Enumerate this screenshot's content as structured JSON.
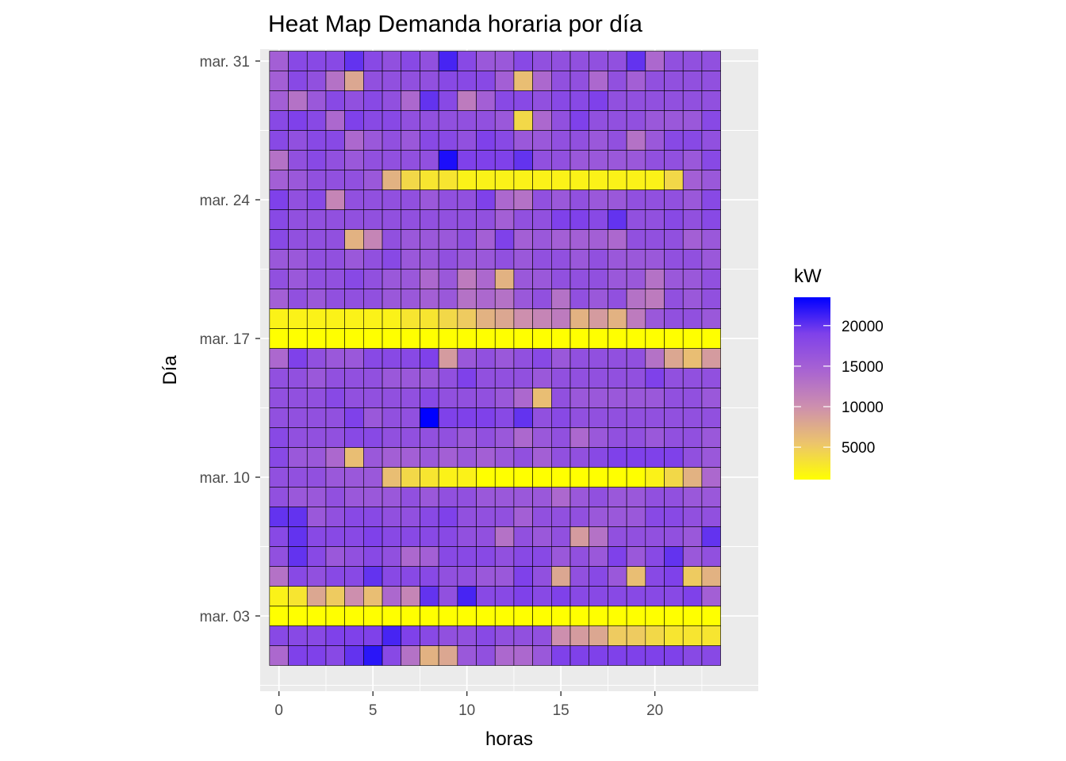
{
  "chart_data": {
    "type": "heatmap",
    "title": "Heat Map Demanda horaria por día",
    "xlabel": "horas",
    "ylabel": "Día",
    "x_ticks": [
      0,
      5,
      10,
      15,
      20
    ],
    "x_range": [
      -1,
      25.5
    ],
    "y_range": [
      -0.8,
      31.6
    ],
    "hours": [
      0,
      1,
      2,
      3,
      4,
      5,
      6,
      7,
      8,
      9,
      10,
      11,
      12,
      13,
      14,
      15,
      16,
      17,
      18,
      19,
      20,
      21,
      22,
      23
    ],
    "days": [
      1,
      2,
      3,
      4,
      5,
      6,
      7,
      8,
      9,
      10,
      11,
      12,
      13,
      14,
      15,
      16,
      17,
      18,
      19,
      20,
      21,
      22,
      23,
      24,
      25,
      26,
      27,
      28,
      29,
      30,
      31
    ],
    "y_tick_days": [
      3,
      10,
      17,
      24,
      31
    ],
    "y_tick_labels": [
      "mar. 03",
      "mar. 10",
      "mar. 17",
      "mar. 24",
      "mar. 31"
    ],
    "legend": {
      "title": "kW",
      "min": 1000,
      "max": 23500,
      "ticks": [
        5000,
        10000,
        15000,
        20000
      ],
      "colors": [
        "#ffff00",
        "#ecc46c",
        "#cd8fae",
        "#a863d2",
        "#7f41ea",
        "#0000ff"
      ]
    },
    "values": [
      [
        14000,
        19000,
        19000,
        18000,
        20000,
        22000,
        18000,
        13000,
        7000,
        8000,
        16000,
        17000,
        14000,
        14000,
        16000,
        19000,
        19000,
        19000,
        19000,
        19000,
        19000,
        19000,
        18000,
        18000
      ],
      [
        18000,
        18000,
        18000,
        19000,
        19000,
        19000,
        21000,
        19000,
        18000,
        17000,
        17000,
        18000,
        17000,
        17000,
        17000,
        10000,
        9000,
        8000,
        5000,
        5000,
        4000,
        3000,
        3000,
        3000
      ],
      [
        1000,
        1000,
        1000,
        1000,
        1000,
        1000,
        1000,
        1000,
        1000,
        1000,
        1000,
        1000,
        1000,
        1000,
        1000,
        1000,
        1000,
        1000,
        1000,
        1000,
        1000,
        1000,
        1000,
        1000
      ],
      [
        2000,
        3000,
        8000,
        5000,
        10000,
        6000,
        14000,
        11000,
        20000,
        17000,
        21000,
        18000,
        18000,
        19000,
        18000,
        19000,
        18000,
        18000,
        18000,
        18000,
        18000,
        18000,
        19000,
        15000
      ],
      [
        13000,
        18000,
        17000,
        18000,
        18000,
        20000,
        18000,
        18000,
        18000,
        17000,
        17000,
        16000,
        16000,
        19000,
        17000,
        8000,
        17000,
        18000,
        16000,
        6000,
        18000,
        19000,
        5000,
        7000
      ],
      [
        17000,
        20000,
        18000,
        16000,
        17000,
        18000,
        17000,
        14000,
        15000,
        18000,
        18000,
        18000,
        17000,
        18000,
        18000,
        16000,
        17000,
        16000,
        19000,
        16000,
        18000,
        20000,
        16000,
        17000
      ],
      [
        18000,
        20000,
        18000,
        18000,
        18000,
        19000,
        18000,
        18000,
        18000,
        18000,
        17000,
        17000,
        13000,
        17000,
        16000,
        17000,
        9000,
        13000,
        17000,
        17000,
        17000,
        17000,
        16000,
        20000
      ],
      [
        20000,
        20000,
        16000,
        17000,
        18000,
        18000,
        17000,
        17000,
        18000,
        19000,
        17000,
        17000,
        17000,
        15000,
        17000,
        17000,
        17000,
        16000,
        16000,
        16000,
        18000,
        18000,
        17000,
        17000
      ],
      [
        17000,
        16000,
        16000,
        17000,
        16000,
        16000,
        16000,
        17000,
        16000,
        17000,
        17000,
        16000,
        16000,
        16000,
        16000,
        14000,
        16000,
        17000,
        16000,
        16000,
        17000,
        17000,
        16000,
        16000
      ],
      [
        17000,
        17000,
        17000,
        16000,
        16000,
        16000,
        6000,
        4000,
        3000,
        2000,
        2000,
        1000,
        1000,
        1000,
        1000,
        1000,
        1000,
        1000,
        1000,
        1000,
        2000,
        4000,
        7000,
        14000
      ],
      [
        18000,
        16000,
        16000,
        14000,
        6000,
        16000,
        15000,
        15000,
        16000,
        15000,
        16000,
        15000,
        16000,
        17000,
        15000,
        17000,
        17000,
        18000,
        19000,
        19000,
        19000,
        19000,
        17000,
        16000
      ],
      [
        18000,
        17000,
        17000,
        17000,
        18000,
        18000,
        17000,
        17000,
        17000,
        17000,
        16000,
        17000,
        16000,
        14000,
        16000,
        17000,
        14000,
        16000,
        17000,
        17000,
        16000,
        17000,
        17000,
        16000
      ],
      [
        17000,
        17000,
        17000,
        17000,
        19000,
        16000,
        17000,
        17000,
        23500,
        19000,
        19000,
        19000,
        18000,
        20000,
        17000,
        18000,
        17000,
        17000,
        17000,
        17000,
        17000,
        17000,
        17000,
        17000
      ],
      [
        17000,
        17000,
        17000,
        18000,
        17000,
        17000,
        17000,
        17000,
        18000,
        17000,
        17000,
        17000,
        16000,
        14000,
        6000,
        17000,
        16000,
        16000,
        16000,
        16000,
        16000,
        17000,
        17000,
        16000
      ],
      [
        17000,
        17000,
        16000,
        17000,
        17000,
        17000,
        16000,
        16000,
        16000,
        17000,
        19000,
        17000,
        17000,
        17000,
        16000,
        17000,
        17000,
        17000,
        17000,
        17000,
        19000,
        17000,
        17000,
        17000
      ],
      [
        14000,
        19000,
        17000,
        16000,
        16000,
        18000,
        18000,
        18000,
        19000,
        9000,
        16000,
        17000,
        16000,
        17000,
        18000,
        16000,
        17000,
        17000,
        17000,
        17000,
        13000,
        8000,
        6000,
        9000
      ],
      [
        1000,
        1000,
        1000,
        1000,
        1000,
        1000,
        1000,
        1000,
        1000,
        1000,
        1000,
        1000,
        1000,
        1000,
        1000,
        1000,
        1000,
        1000,
        1000,
        1000,
        1000,
        1000,
        1000,
        1000
      ],
      [
        2000,
        2000,
        2000,
        2000,
        2000,
        2000,
        2000,
        3000,
        3000,
        4000,
        5000,
        7000,
        8000,
        10000,
        11000,
        12000,
        7000,
        9000,
        7000,
        12000,
        16000,
        17000,
        17000,
        16000
      ],
      [
        15000,
        17000,
        16000,
        17000,
        17000,
        17000,
        16000,
        16000,
        15000,
        16000,
        13000,
        14000,
        13000,
        16000,
        17000,
        13000,
        17000,
        16000,
        17000,
        13000,
        12000,
        17000,
        16000,
        17000
      ],
      [
        17000,
        16000,
        17000,
        17000,
        18000,
        17000,
        16000,
        16000,
        14000,
        16000,
        12000,
        14000,
        7000,
        16000,
        16000,
        17000,
        17000,
        17000,
        16000,
        16000,
        13000,
        16000,
        16000,
        17000
      ],
      [
        16000,
        16000,
        17000,
        17000,
        16000,
        17000,
        18000,
        16000,
        16000,
        17000,
        16000,
        16000,
        17000,
        16000,
        17000,
        17000,
        16000,
        17000,
        16000,
        16000,
        16000,
        17000,
        17000,
        16000
      ],
      [
        18000,
        17000,
        17000,
        17000,
        7000,
        11000,
        17000,
        16000,
        16000,
        16000,
        17000,
        15000,
        19000,
        15000,
        16000,
        15000,
        15000,
        15000,
        14000,
        17000,
        17000,
        17000,
        15000,
        16000
      ],
      [
        18000,
        17000,
        17000,
        17000,
        17000,
        17000,
        17000,
        17000,
        17000,
        17000,
        17000,
        17000,
        15000,
        17000,
        17000,
        19000,
        19000,
        18000,
        20000,
        17000,
        17000,
        18000,
        17000,
        18000
      ],
      [
        19000,
        17000,
        18000,
        11000,
        17000,
        17000,
        17000,
        17000,
        16000,
        17000,
        17000,
        19000,
        14000,
        13000,
        17000,
        16000,
        17000,
        16000,
        16000,
        17000,
        17000,
        17000,
        16000,
        18000
      ],
      [
        15000,
        16000,
        17000,
        17000,
        17000,
        16000,
        7000,
        4000,
        3000,
        3000,
        2000,
        2000,
        2000,
        2000,
        2000,
        2000,
        2000,
        2000,
        2000,
        2000,
        2000,
        4000,
        15000,
        16000
      ],
      [
        13000,
        17000,
        18000,
        17000,
        16000,
        17000,
        17000,
        17000,
        17000,
        22500,
        19000,
        19000,
        19000,
        20000,
        17000,
        17000,
        16000,
        16000,
        16000,
        16000,
        17000,
        17000,
        16000,
        18000
      ],
      [
        18000,
        17000,
        18000,
        18000,
        14000,
        16000,
        17000,
        16000,
        18000,
        18000,
        17000,
        19000,
        18000,
        16000,
        16000,
        17000,
        17000,
        16000,
        17000,
        13000,
        16000,
        18000,
        18000,
        17000
      ],
      [
        18000,
        19000,
        18000,
        14000,
        19000,
        18000,
        18000,
        17000,
        17000,
        17000,
        17000,
        17000,
        16000,
        4000,
        14000,
        17000,
        19000,
        17000,
        17000,
        17000,
        16000,
        16000,
        16000,
        18000
      ],
      [
        15000,
        13000,
        16000,
        18000,
        17000,
        18000,
        17000,
        14000,
        20000,
        18000,
        12000,
        15000,
        18000,
        18000,
        17000,
        18000,
        18000,
        19000,
        17000,
        17000,
        17000,
        17000,
        17000,
        17000
      ],
      [
        15000,
        18000,
        17000,
        13000,
        8000,
        17000,
        17000,
        17000,
        17000,
        18000,
        18000,
        18000,
        15000,
        6000,
        14000,
        17000,
        17000,
        14000,
        17000,
        15000,
        17000,
        17000,
        17000,
        17000
      ],
      [
        15000,
        18000,
        18000,
        18000,
        20000,
        18000,
        17000,
        18000,
        17000,
        21000,
        18000,
        16000,
        16000,
        18000,
        17000,
        17000,
        17000,
        17000,
        17000,
        20000,
        14000,
        17000,
        17000,
        17000
      ]
    ]
  }
}
